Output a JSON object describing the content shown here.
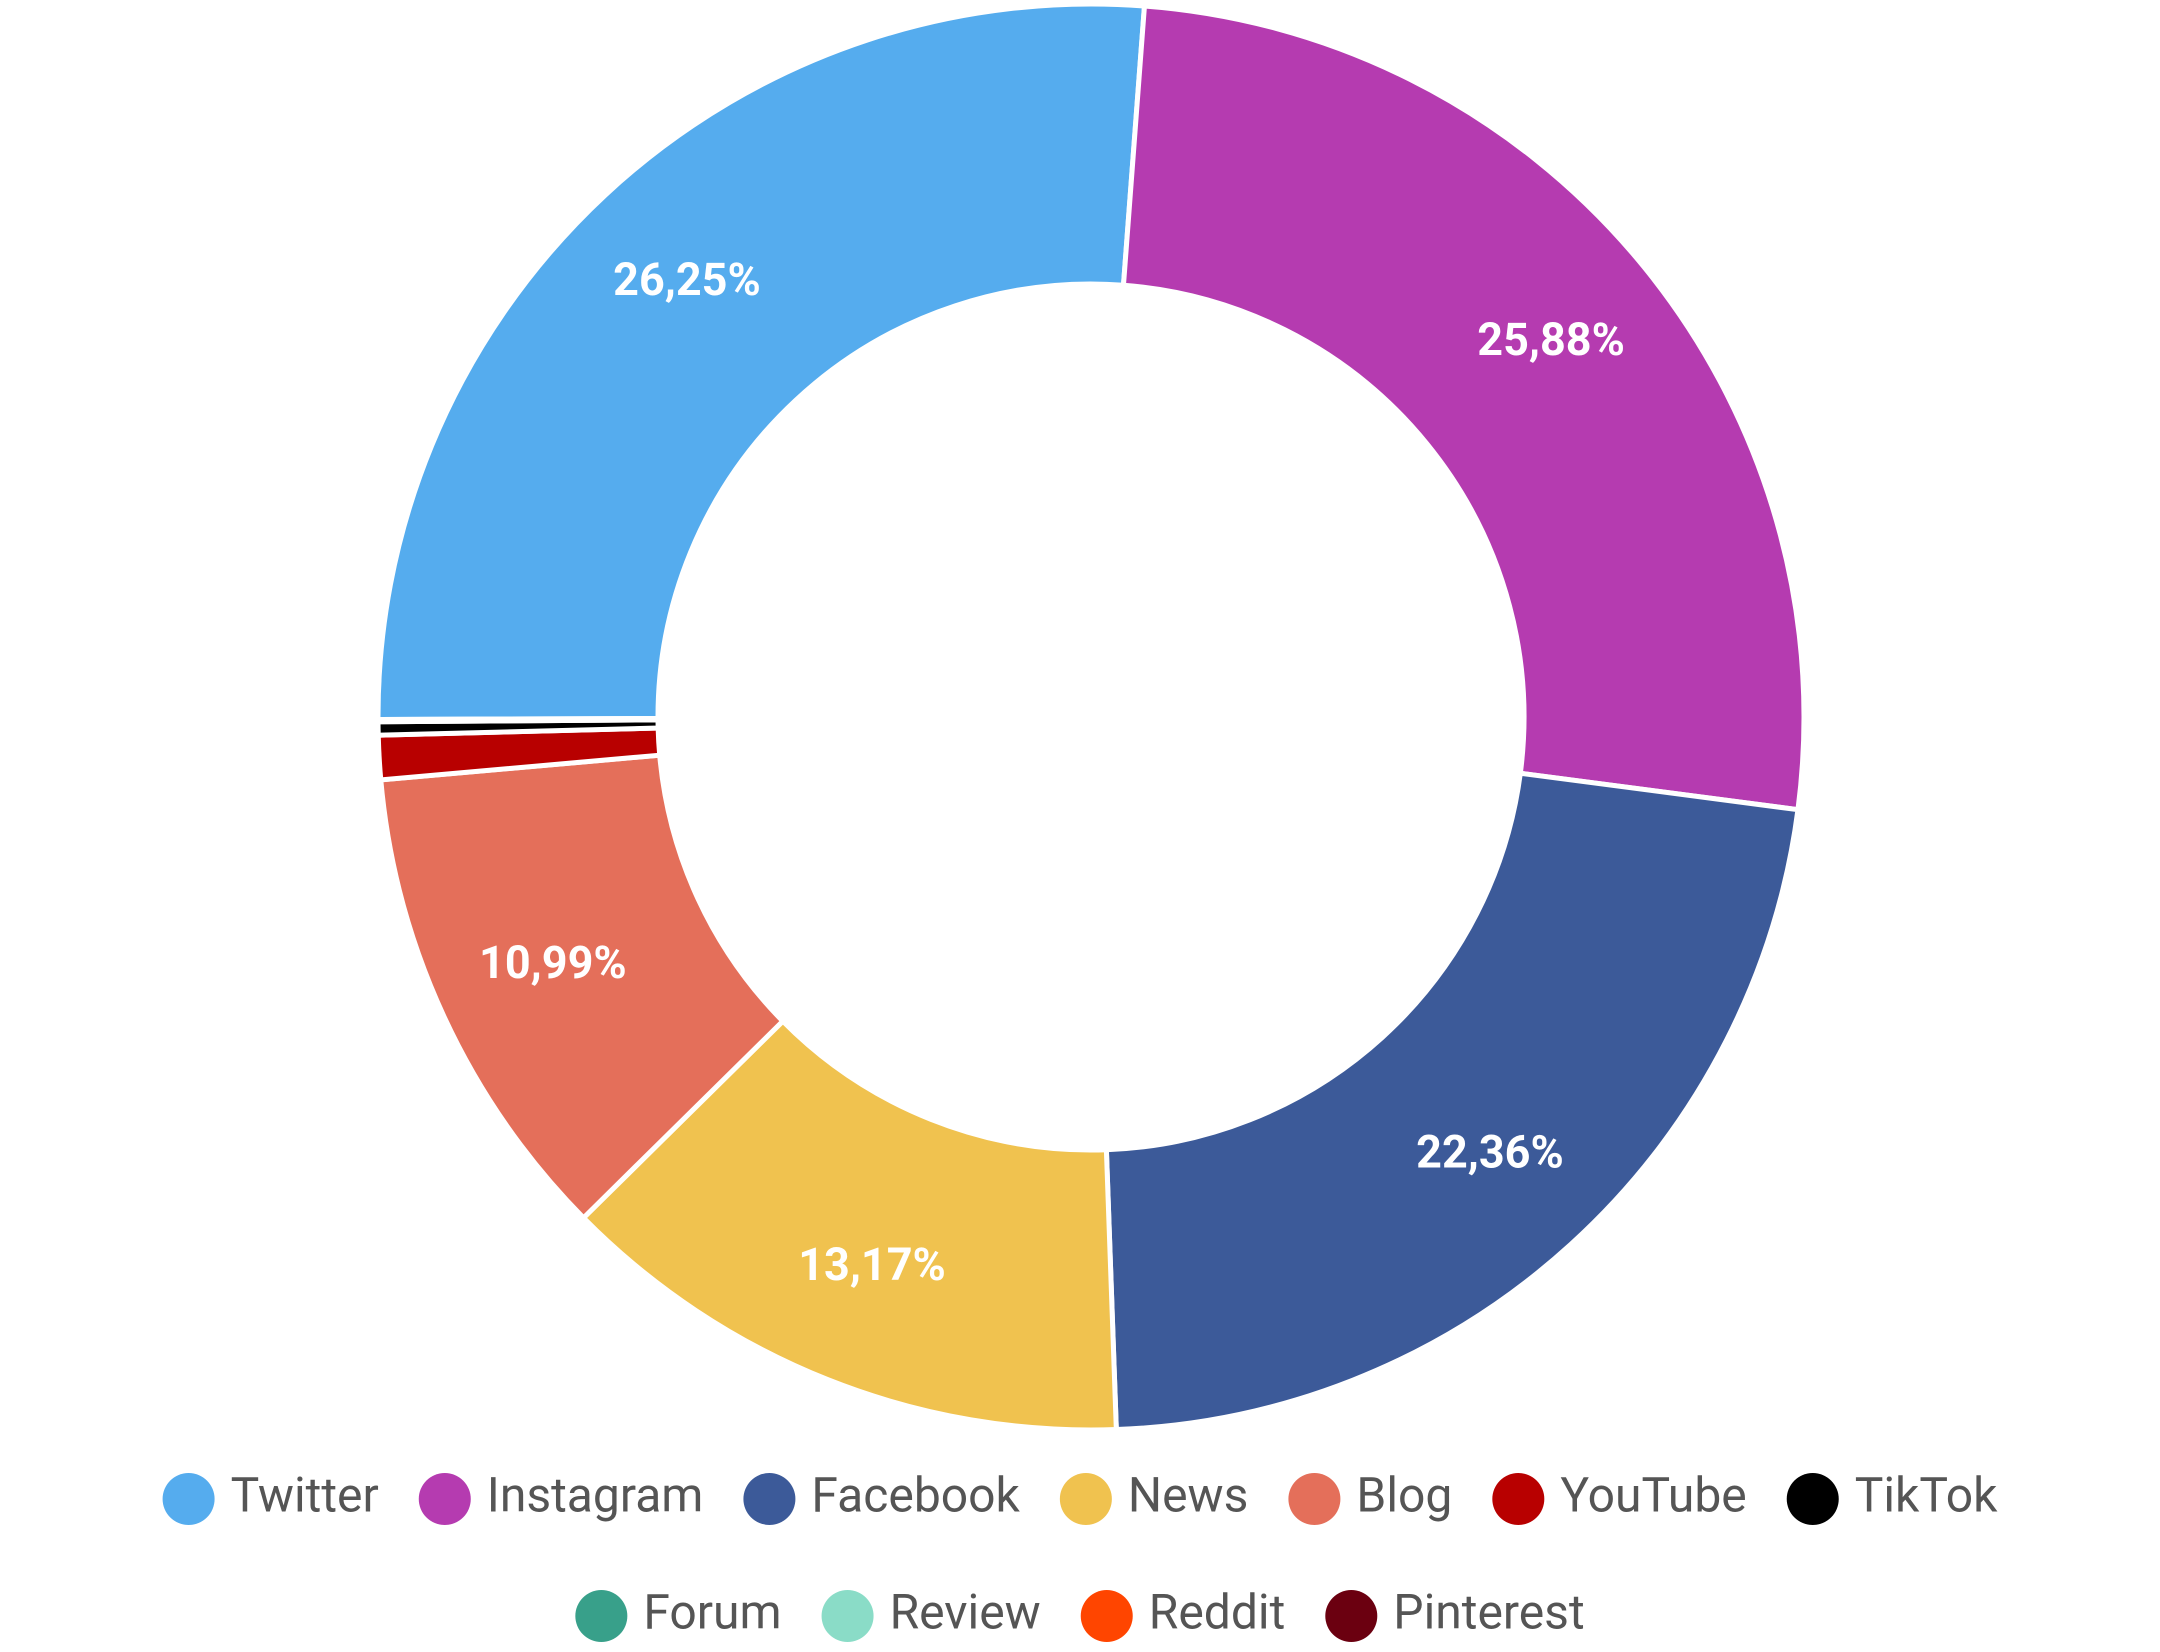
{
  "chart_data": {
    "type": "donut",
    "series": [
      {
        "name": "Twitter",
        "color": "#55acee",
        "values": [
          26.25
        ],
        "value_labels": [
          "26,25%"
        ]
      },
      {
        "name": "Instagram",
        "color": "#b53bb0",
        "values": [
          25.88
        ],
        "value_labels": [
          "25,88%"
        ]
      },
      {
        "name": "Facebook",
        "color": "#3c5a99",
        "values": [
          22.36
        ],
        "value_labels": [
          "22,36%"
        ]
      },
      {
        "name": "News",
        "color": "#f0c24f",
        "values": [
          13.17
        ],
        "value_labels": [
          "13,17%"
        ]
      },
      {
        "name": "Blog",
        "color": "#e46f5a",
        "values": [
          10.99
        ],
        "value_labels": [
          "10,99%"
        ]
      },
      {
        "name": "YouTube",
        "color": "#b80000",
        "values": [
          1.0
        ]
      },
      {
        "name": "TikTok",
        "color": "#000000",
        "values": [
          0.3
        ]
      },
      {
        "name": "Forum",
        "color": "#38a08a",
        "values": [
          0.02
        ]
      },
      {
        "name": "Review",
        "color": "#8adcc7",
        "values": [
          0.02
        ]
      },
      {
        "name": "Reddit",
        "color": "#ff4500",
        "values": [
          0.005
        ]
      },
      {
        "name": "Pinterest",
        "color": "#6b0010",
        "values": [
          0.005
        ]
      }
    ]
  }
}
